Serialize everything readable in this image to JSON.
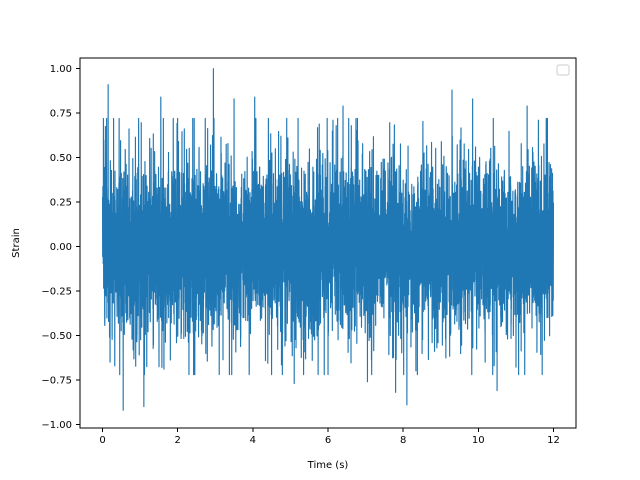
{
  "chart_data": {
    "type": "line",
    "title": "",
    "xlabel": "Time (s)",
    "ylabel": "Strain",
    "xlim": [
      -0.6,
      12.6
    ],
    "ylim": [
      -1.02,
      1.06
    ],
    "xticks": [
      0,
      2,
      4,
      6,
      8,
      10,
      12
    ],
    "xtick_labels": [
      "0",
      "2",
      "4",
      "6",
      "8",
      "10",
      "12"
    ],
    "yticks": [
      -1.0,
      -0.75,
      -0.5,
      -0.25,
      0.0,
      0.25,
      0.5,
      0.75,
      1.0
    ],
    "ytick_labels": [
      "−1.00",
      "−0.75",
      "−0.50",
      "−0.25",
      "0.00",
      "0.25",
      "0.50",
      "0.75",
      "1.00"
    ],
    "legend": {
      "location": "upper right",
      "entries": []
    },
    "grid": false,
    "series": [
      {
        "color": "#1f77b4",
        "x_start": 0,
        "x_end": 12,
        "description_points": [
          {
            "x": 0.15,
            "y": 0.91
          },
          {
            "x": 0.2,
            "y": -0.65
          },
          {
            "x": 0.55,
            "y": -0.92
          },
          {
            "x": 1.1,
            "y": -0.9
          },
          {
            "x": 1.55,
            "y": 0.84
          },
          {
            "x": 2.95,
            "y": 1.0
          },
          {
            "x": 3.5,
            "y": 0.83
          },
          {
            "x": 4.05,
            "y": 0.84
          },
          {
            "x": 5.1,
            "y": -0.77
          },
          {
            "x": 6.4,
            "y": 0.79
          },
          {
            "x": 7.05,
            "y": -0.76
          },
          {
            "x": 7.8,
            "y": -0.82
          },
          {
            "x": 8.1,
            "y": -0.89
          },
          {
            "x": 9.3,
            "y": 0.88
          },
          {
            "x": 9.85,
            "y": 0.83
          },
          {
            "x": 10.5,
            "y": -0.81
          },
          {
            "x": 11.3,
            "y": 0.79
          },
          {
            "x": 11.6,
            "y": 0.71
          }
        ]
      }
    ]
  }
}
